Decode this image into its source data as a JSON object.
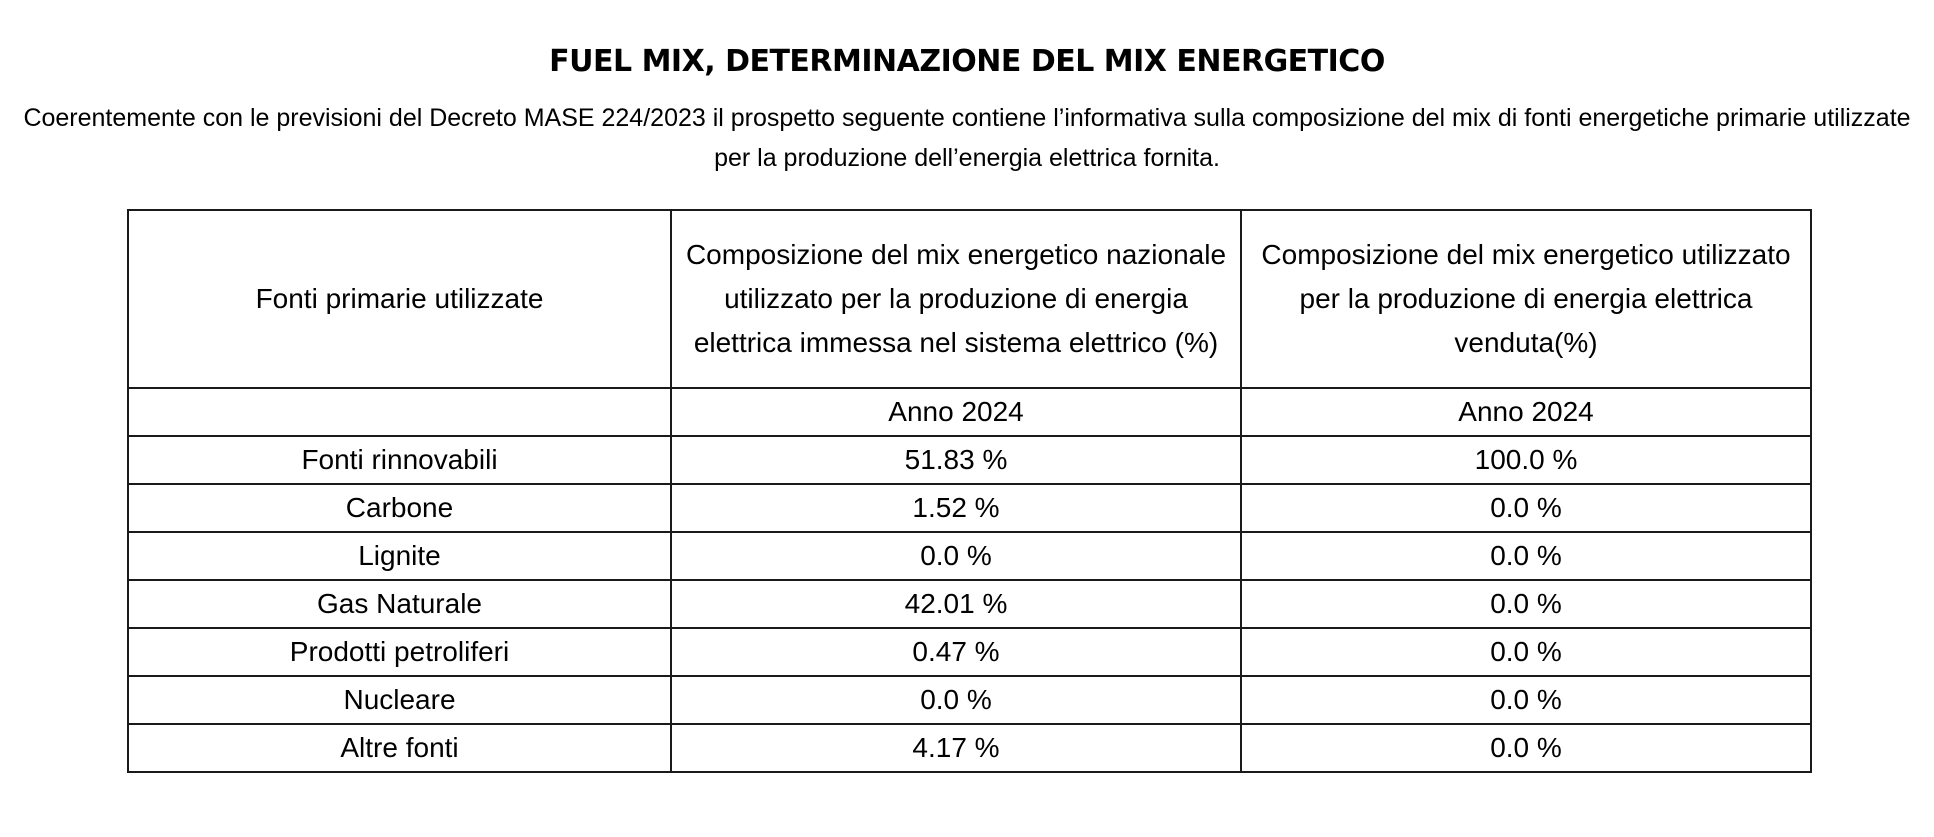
{
  "document": {
    "title": "FUEL MIX, DETERMINAZIONE DEL MIX ENERGETICO",
    "intro": "Coerentemente con le previsioni del Decreto MASE 224/2023 il prospetto seguente contiene l’informativa sulla composizione del mix di fonti energetiche primarie utilizzate per la produzione dell’energia elettrica fornita."
  },
  "table": {
    "headers": [
      "Fonti primarie utilizzate",
      "Composizione del mix energetico nazionale utilizzato per la produzione di energia elettrica immessa nel sistema elettrico (%)",
      "Composizione del mix energetico utilizzato per la produzione di energia elettrica venduta(%)"
    ],
    "year_row": [
      "",
      "Anno 2024",
      "Anno 2024"
    ],
    "rows": [
      [
        "Fonti rinnovabili",
        "51.83 %",
        "100.0 %"
      ],
      [
        "Carbone",
        "1.52 %",
        "0.0 %"
      ],
      [
        "Lignite",
        "0.0 %",
        "0.0 %"
      ],
      [
        "Gas Naturale",
        "42.01 %",
        "0.0 %"
      ],
      [
        "Prodotti petroliferi",
        "0.47 %",
        "0.0 %"
      ],
      [
        "Nucleare",
        "0.0 %",
        "0.0 %"
      ],
      [
        "Altre fonti",
        "4.17 %",
        "0.0 %"
      ]
    ]
  }
}
